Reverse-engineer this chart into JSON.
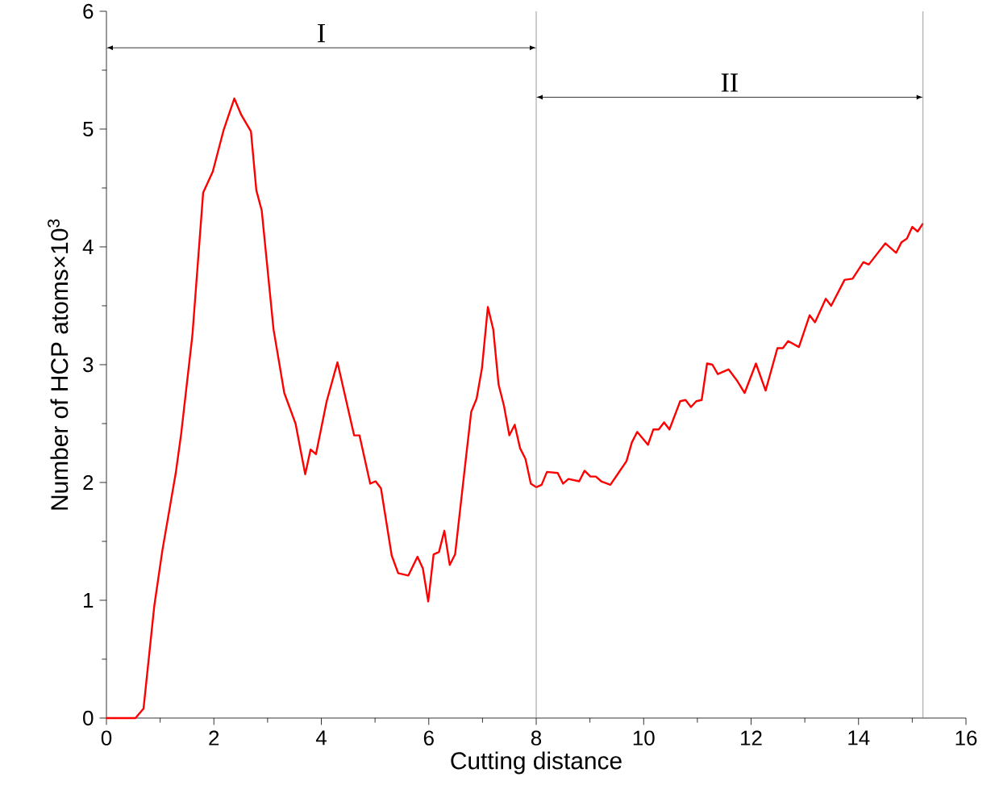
{
  "chart_data": {
    "type": "line",
    "xlabel": "Cutting distance",
    "ylabel": "Number of HCP atoms×10$^{3}$",
    "xlim": [
      0,
      16
    ],
    "ylim": [
      0,
      6
    ],
    "xticks": [
      0,
      2,
      4,
      6,
      8,
      10,
      12,
      14,
      16
    ],
    "yticks": [
      0,
      1,
      2,
      3,
      4,
      5,
      6
    ],
    "grid": false,
    "marker": "none",
    "line_style": "solid",
    "ref_lines": [
      {
        "axis": "x",
        "value": 8,
        "color": "#808080"
      },
      {
        "axis": "x",
        "value": 15.2,
        "color": "#808080"
      }
    ],
    "annotations": [
      "I",
      "II"
    ],
    "series": [
      {
        "color": "#ff0000",
        "x": [
          0,
          0.54,
          0.69,
          0.89,
          1.04,
          1.29,
          1.39,
          1.6,
          1.8,
          1.98,
          2.18,
          2.38,
          2.51,
          2.69,
          2.79,
          2.89,
          3.11,
          3.31,
          3.52,
          3.7,
          3.8,
          3.9,
          4.1,
          4.3,
          4.61,
          4.71,
          4.91,
          5.01,
          5.11,
          5.31,
          5.43,
          5.62,
          5.79,
          5.89,
          5.99,
          6.09,
          6.19,
          6.29,
          6.39,
          6.49,
          6.66,
          6.79,
          6.89,
          6.99,
          7.1,
          7.2,
          7.3,
          7.4,
          7.5,
          7.6,
          7.7,
          7.8,
          7.9,
          8.0,
          8.1,
          8.2,
          8.4,
          8.5,
          8.6,
          8.8,
          8.9,
          9.01,
          9.11,
          9.21,
          9.38,
          9.53,
          9.68,
          9.78,
          9.88,
          10.08,
          10.18,
          10.28,
          10.38,
          10.48,
          10.68,
          10.78,
          10.88,
          10.98,
          11.08,
          11.18,
          11.28,
          11.38,
          11.58,
          11.73,
          11.88,
          12.09,
          12.27,
          12.49,
          12.59,
          12.69,
          12.89,
          13.09,
          13.19,
          13.39,
          13.49,
          13.74,
          13.89,
          14.09,
          14.19,
          14.5,
          14.7,
          14.8,
          14.9,
          15.0,
          15.1,
          15.2
        ],
        "values": [
          0,
          0,
          0.08,
          0.95,
          1.42,
          2.08,
          2.41,
          3.25,
          4.46,
          4.64,
          4.99,
          5.26,
          5.12,
          4.98,
          4.48,
          4.31,
          3.3,
          2.76,
          2.5,
          2.07,
          2.28,
          2.24,
          2.69,
          3.02,
          2.4,
          2.4,
          1.99,
          2.01,
          1.95,
          1.38,
          1.23,
          1.21,
          1.37,
          1.27,
          0.99,
          1.39,
          1.41,
          1.59,
          1.3,
          1.39,
          2.08,
          2.6,
          2.71,
          2.97,
          3.49,
          3.3,
          2.83,
          2.65,
          2.4,
          2.49,
          2.29,
          2.2,
          1.99,
          1.96,
          1.98,
          2.09,
          2.08,
          1.99,
          2.03,
          2.01,
          2.1,
          2.05,
          2.05,
          2.01,
          1.98,
          2.08,
          2.18,
          2.34,
          2.43,
          2.32,
          2.45,
          2.45,
          2.51,
          2.45,
          2.69,
          2.7,
          2.64,
          2.69,
          2.7,
          3.01,
          3.0,
          2.92,
          2.96,
          2.87,
          2.76,
          3.01,
          2.78,
          3.14,
          3.14,
          3.2,
          3.15,
          3.42,
          3.36,
          3.56,
          3.5,
          3.72,
          3.73,
          3.87,
          3.85,
          4.03,
          3.95,
          4.04,
          4.07,
          4.17,
          4.13,
          4.2
        ]
      }
    ]
  }
}
